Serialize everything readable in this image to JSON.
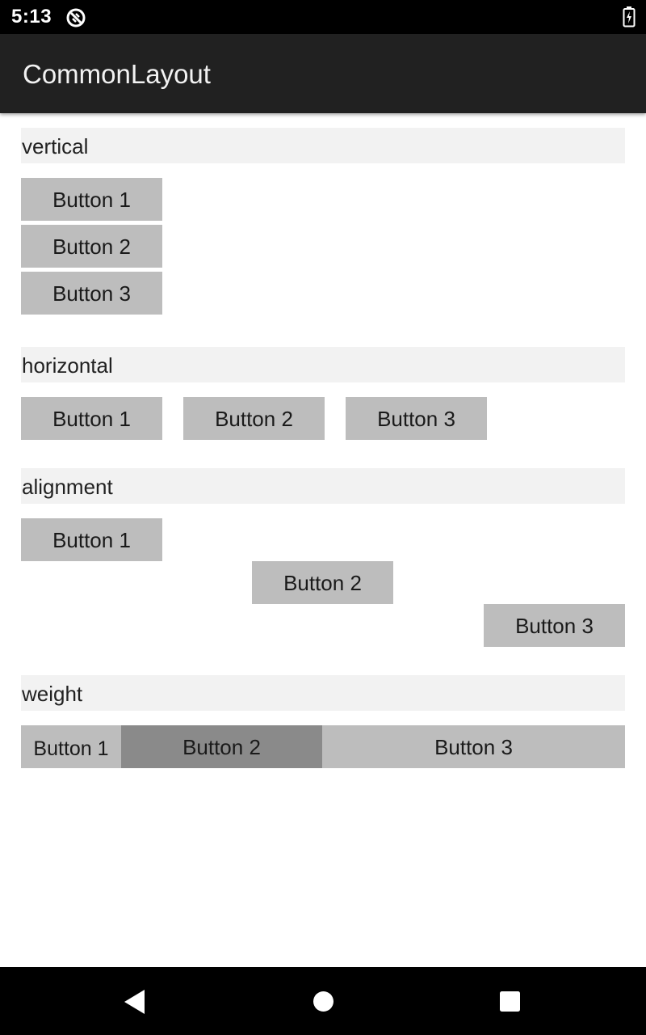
{
  "status_bar": {
    "time": "5:13",
    "icons": [
      "sync-icon",
      "battery-charging-icon"
    ]
  },
  "app_bar": {
    "title": "CommonLayout"
  },
  "sections": {
    "vertical": {
      "header": "vertical",
      "buttons": [
        "Button 1",
        "Button 2",
        "Button 3"
      ]
    },
    "horizontal": {
      "header": "horizontal",
      "buttons": [
        "Button 1",
        "Button 2",
        "Button 3"
      ]
    },
    "alignment": {
      "header": "alignment",
      "buttons": [
        "Button 1",
        "Button 2",
        "Button 3"
      ]
    },
    "weight": {
      "header": "weight",
      "buttons": [
        "Button 1",
        "Button 2",
        "Button 3"
      ],
      "pressed_button": "Button 2"
    }
  },
  "nav_bar": {
    "icons": [
      "back-icon",
      "home-icon",
      "recents-icon"
    ]
  },
  "colors": {
    "status_bar": "#000000",
    "app_bar": "#212121",
    "section_header_bg": "#f2f2f2",
    "button_bg": "#bdbdbd",
    "button_pressed_bg": "#8a8a8a"
  }
}
